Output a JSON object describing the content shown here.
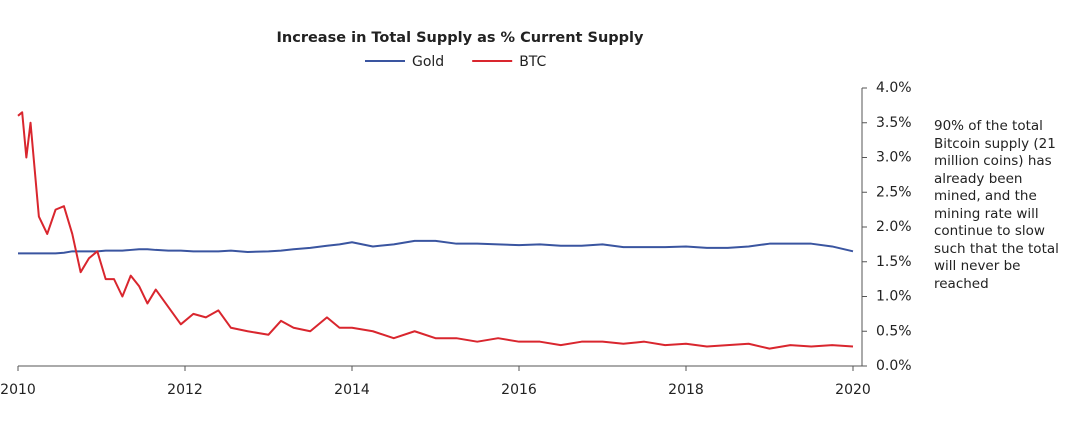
{
  "chart_data": {
    "type": "line",
    "title": "Increase in Total Supply as % Current Supply",
    "annotation": "90% of the total Bitcoin supply (21 million coins) has already been mined, and the mining rate will continue to slow such that the total will never be reached",
    "x": [
      2010,
      2010.05,
      2010.1,
      2010.15,
      2010.25,
      2010.35,
      2010.45,
      2010.55,
      2010.65,
      2010.75,
      2010.85,
      2010.95,
      2011.05,
      2011.15,
      2011.25,
      2011.35,
      2011.45,
      2011.55,
      2011.65,
      2011.8,
      2011.95,
      2012.1,
      2012.25,
      2012.4,
      2012.55,
      2012.75,
      2013,
      2013.15,
      2013.3,
      2013.5,
      2013.7,
      2013.85,
      2014,
      2014.25,
      2014.5,
      2014.75,
      2015,
      2015.25,
      2015.5,
      2015.75,
      2016,
      2016.25,
      2016.5,
      2016.75,
      2017,
      2017.25,
      2017.5,
      2017.75,
      2018,
      2018.25,
      2018.5,
      2018.75,
      2019,
      2019.25,
      2019.5,
      2019.75,
      2020
    ],
    "series": [
      {
        "name": "Gold",
        "color": "#3a55a0",
        "values": [
          1.62,
          1.62,
          1.62,
          1.62,
          1.62,
          1.62,
          1.62,
          1.63,
          1.65,
          1.65,
          1.65,
          1.65,
          1.66,
          1.66,
          1.66,
          1.67,
          1.68,
          1.68,
          1.67,
          1.66,
          1.66,
          1.65,
          1.65,
          1.65,
          1.66,
          1.64,
          1.65,
          1.66,
          1.68,
          1.7,
          1.73,
          1.75,
          1.78,
          1.72,
          1.75,
          1.8,
          1.8,
          1.76,
          1.76,
          1.75,
          1.74,
          1.75,
          1.73,
          1.73,
          1.75,
          1.71,
          1.71,
          1.71,
          1.72,
          1.7,
          1.7,
          1.72,
          1.76,
          1.76,
          1.76,
          1.72,
          1.65
        ]
      },
      {
        "name": "BTC",
        "color": "#d9262e",
        "values": [
          3.6,
          3.65,
          3.0,
          3.5,
          2.15,
          1.9,
          2.25,
          2.3,
          1.9,
          1.35,
          1.55,
          1.65,
          1.25,
          1.25,
          1.0,
          1.3,
          1.15,
          0.9,
          1.1,
          0.85,
          0.6,
          0.75,
          0.7,
          0.8,
          0.55,
          0.5,
          0.45,
          0.65,
          0.55,
          0.5,
          0.7,
          0.55,
          0.55,
          0.5,
          0.4,
          0.5,
          0.4,
          0.4,
          0.35,
          0.4,
          0.35,
          0.35,
          0.3,
          0.35,
          0.35,
          0.32,
          0.35,
          0.3,
          0.32,
          0.28,
          0.3,
          0.32,
          0.25,
          0.3,
          0.28,
          0.3,
          0.28
        ]
      }
    ],
    "xlim": [
      2010,
      2020
    ],
    "xticks": [
      2010,
      2012,
      2014,
      2016,
      2018,
      2020
    ],
    "ylim": [
      0,
      4
    ],
    "yticks": [
      {
        "value": 0,
        "label": "0.0%"
      },
      {
        "value": 0.5,
        "label": "0.5%"
      },
      {
        "value": 1,
        "label": "1.0%"
      },
      {
        "value": 1.5,
        "label": "1.5%"
      },
      {
        "value": 2,
        "label": "2.0%"
      },
      {
        "value": 2.5,
        "label": "2.5%"
      },
      {
        "value": 3,
        "label": "3.0%"
      },
      {
        "value": 3.5,
        "label": "3.5%"
      },
      {
        "value": 4,
        "label": "4.0%"
      }
    ],
    "y_axis_side": "right",
    "legend": "top"
  }
}
